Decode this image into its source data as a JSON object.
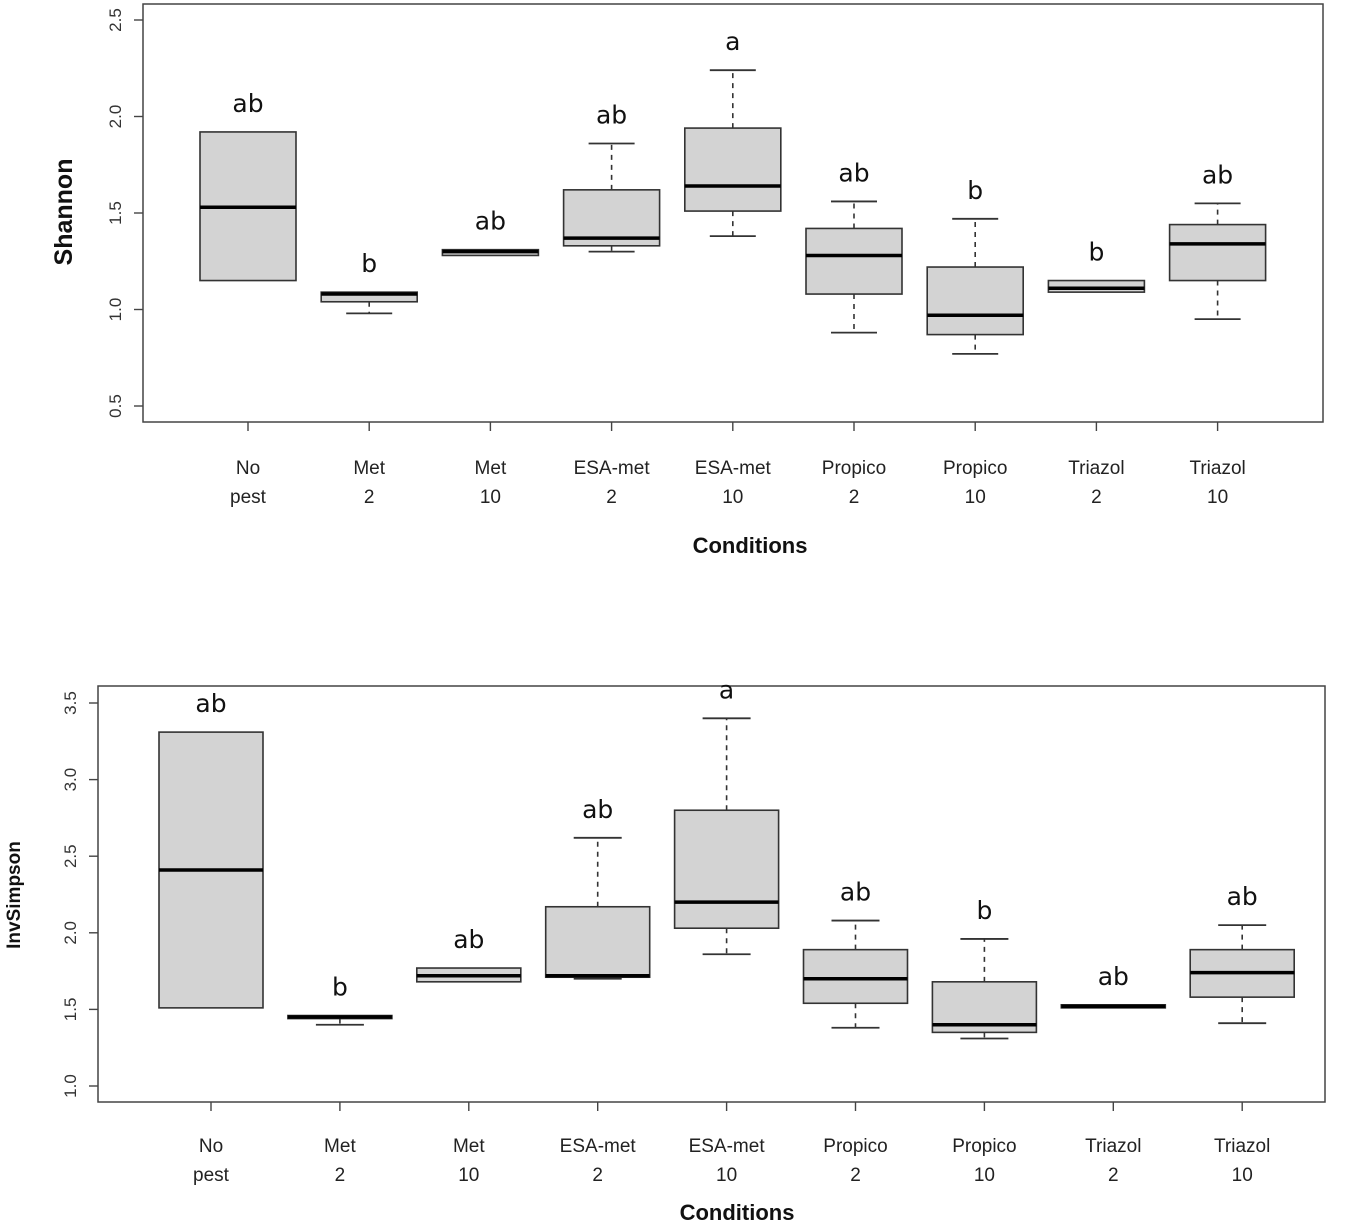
{
  "chart_data": [
    {
      "type": "boxplot",
      "xlabel": "Conditions",
      "ylabel": "Shannon",
      "ylim": [
        0.5,
        2.5
      ],
      "yticks": [
        "0.5",
        "1.0",
        "1.5",
        "2.0",
        "2.5"
      ],
      "categories": [
        {
          "line1": "No",
          "line2": "pest"
        },
        {
          "line1": "Met",
          "line2": "2"
        },
        {
          "line1": "Met",
          "line2": "10"
        },
        {
          "line1": "ESA-met",
          "line2": "2"
        },
        {
          "line1": "ESA-met",
          "line2": "10"
        },
        {
          "line1": "Propico",
          "line2": "2"
        },
        {
          "line1": "Propico",
          "line2": "10"
        },
        {
          "line1": "Triazol",
          "line2": "2"
        },
        {
          "line1": "Triazol",
          "line2": "10"
        }
      ],
      "boxes": [
        {
          "min": 1.15,
          "q1": 1.15,
          "median": 1.53,
          "q3": 1.92,
          "max": 1.92,
          "sig": "ab"
        },
        {
          "min": 0.98,
          "q1": 1.04,
          "median": 1.08,
          "q3": 1.09,
          "max": 1.09,
          "sig": "b"
        },
        {
          "min": 1.28,
          "q1": 1.28,
          "median": 1.3,
          "q3": 1.31,
          "max": 1.31,
          "sig": "ab"
        },
        {
          "min": 1.3,
          "q1": 1.33,
          "median": 1.37,
          "q3": 1.62,
          "max": 1.86,
          "sig": "ab"
        },
        {
          "min": 1.38,
          "q1": 1.51,
          "median": 1.64,
          "q3": 1.94,
          "max": 2.24,
          "sig": "a"
        },
        {
          "min": 0.88,
          "q1": 1.08,
          "median": 1.28,
          "q3": 1.42,
          "max": 1.56,
          "sig": "ab"
        },
        {
          "min": 0.77,
          "q1": 0.87,
          "median": 0.97,
          "q3": 1.22,
          "max": 1.47,
          "sig": "b"
        },
        {
          "min": 1.09,
          "q1": 1.09,
          "median": 1.11,
          "q3": 1.15,
          "max": 1.15,
          "sig": "b"
        },
        {
          "min": 0.95,
          "q1": 1.15,
          "median": 1.34,
          "q3": 1.44,
          "max": 1.55,
          "sig": "ab"
        }
      ]
    },
    {
      "type": "boxplot",
      "xlabel": "Conditions",
      "ylabel": "InvSimpson",
      "ylim": [
        1.0,
        3.5
      ],
      "yticks": [
        "1.0",
        "1.5",
        "2.0",
        "2.5",
        "3.0",
        "3.5"
      ],
      "categories": [
        {
          "line1": "No",
          "line2": "pest"
        },
        {
          "line1": "Met",
          "line2": "2"
        },
        {
          "line1": "Met",
          "line2": "10"
        },
        {
          "line1": "ESA-met",
          "line2": "2"
        },
        {
          "line1": "ESA-met",
          "line2": "10"
        },
        {
          "line1": "Propico",
          "line2": "2"
        },
        {
          "line1": "Propico",
          "line2": "10"
        },
        {
          "line1": "Triazol",
          "line2": "2"
        },
        {
          "line1": "Triazol",
          "line2": "10"
        }
      ],
      "boxes": [
        {
          "min": 1.51,
          "q1": 1.51,
          "median": 2.41,
          "q3": 3.31,
          "max": 3.31,
          "sig": "ab"
        },
        {
          "min": 1.4,
          "q1": 1.44,
          "median": 1.45,
          "q3": 1.46,
          "max": 1.46,
          "sig": "b"
        },
        {
          "min": 1.68,
          "q1": 1.68,
          "median": 1.72,
          "q3": 1.77,
          "max": 1.77,
          "sig": "ab"
        },
        {
          "min": 1.7,
          "q1": 1.71,
          "median": 1.72,
          "q3": 2.17,
          "max": 2.62,
          "sig": "ab"
        },
        {
          "min": 1.86,
          "q1": 2.03,
          "median": 2.2,
          "q3": 2.8,
          "max": 3.4,
          "sig": "a"
        },
        {
          "min": 1.38,
          "q1": 1.54,
          "median": 1.7,
          "q3": 1.89,
          "max": 2.08,
          "sig": "ab"
        },
        {
          "min": 1.31,
          "q1": 1.35,
          "median": 1.4,
          "q3": 1.68,
          "max": 1.96,
          "sig": "b"
        },
        {
          "min": 1.51,
          "q1": 1.51,
          "median": 1.52,
          "q3": 1.53,
          "max": 1.53,
          "sig": "ab"
        },
        {
          "min": 1.41,
          "q1": 1.58,
          "median": 1.74,
          "q3": 1.89,
          "max": 2.05,
          "sig": "ab"
        }
      ]
    }
  ]
}
